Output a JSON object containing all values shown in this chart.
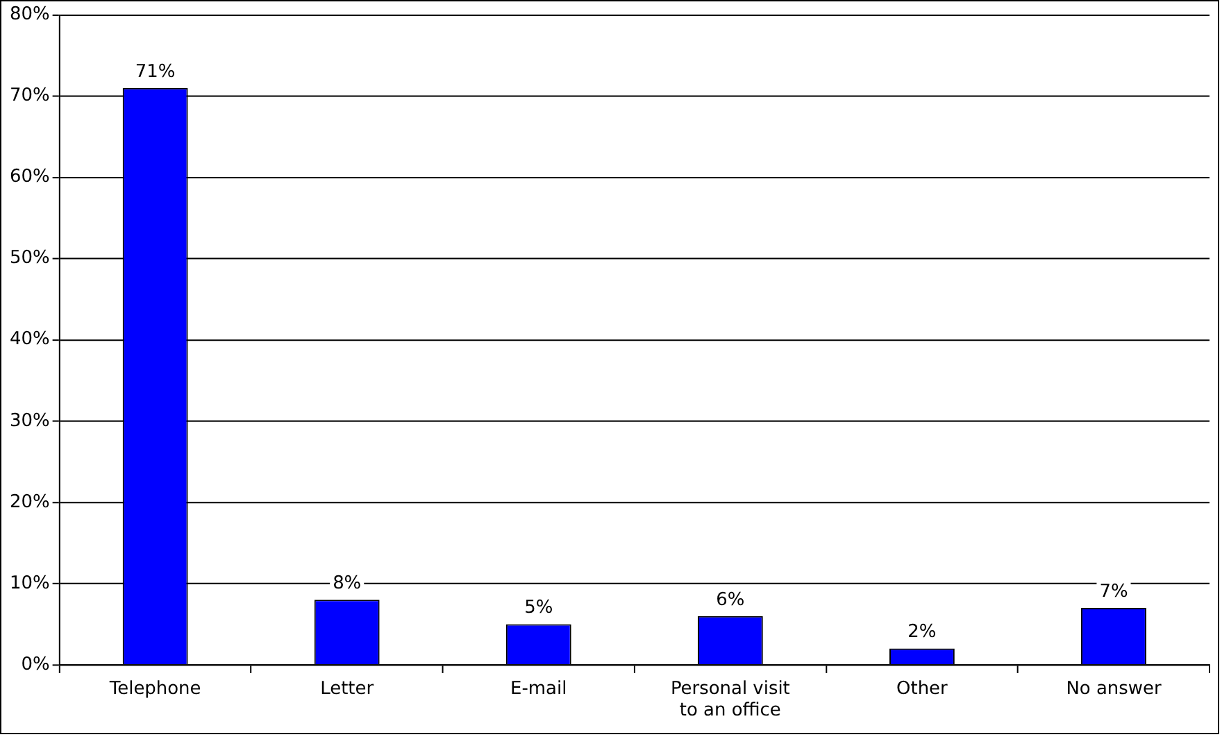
{
  "chart_data": {
    "type": "bar",
    "categories": [
      "Telephone",
      "Letter",
      "E-mail",
      "Personal visit to an office",
      "Other",
      "No answer"
    ],
    "values": [
      71,
      8,
      5,
      6,
      2,
      7
    ],
    "color": "#0000ff",
    "value_labels": [
      "71%",
      "8%",
      "5%",
      "6%",
      "2%",
      "7%"
    ],
    "ylim": [
      0,
      80
    ],
    "yticks": [
      {
        "value": 0,
        "label": "0%"
      },
      {
        "value": 10,
        "label": "10%"
      },
      {
        "value": 20,
        "label": "20%"
      },
      {
        "value": 30,
        "label": "30%"
      },
      {
        "value": 40,
        "label": "40%"
      },
      {
        "value": 50,
        "label": "50%"
      },
      {
        "value": 60,
        "label": "60%"
      },
      {
        "value": 70,
        "label": "70%"
      },
      {
        "value": 80,
        "label": "80%"
      }
    ],
    "grid": "y",
    "legend": false
  }
}
